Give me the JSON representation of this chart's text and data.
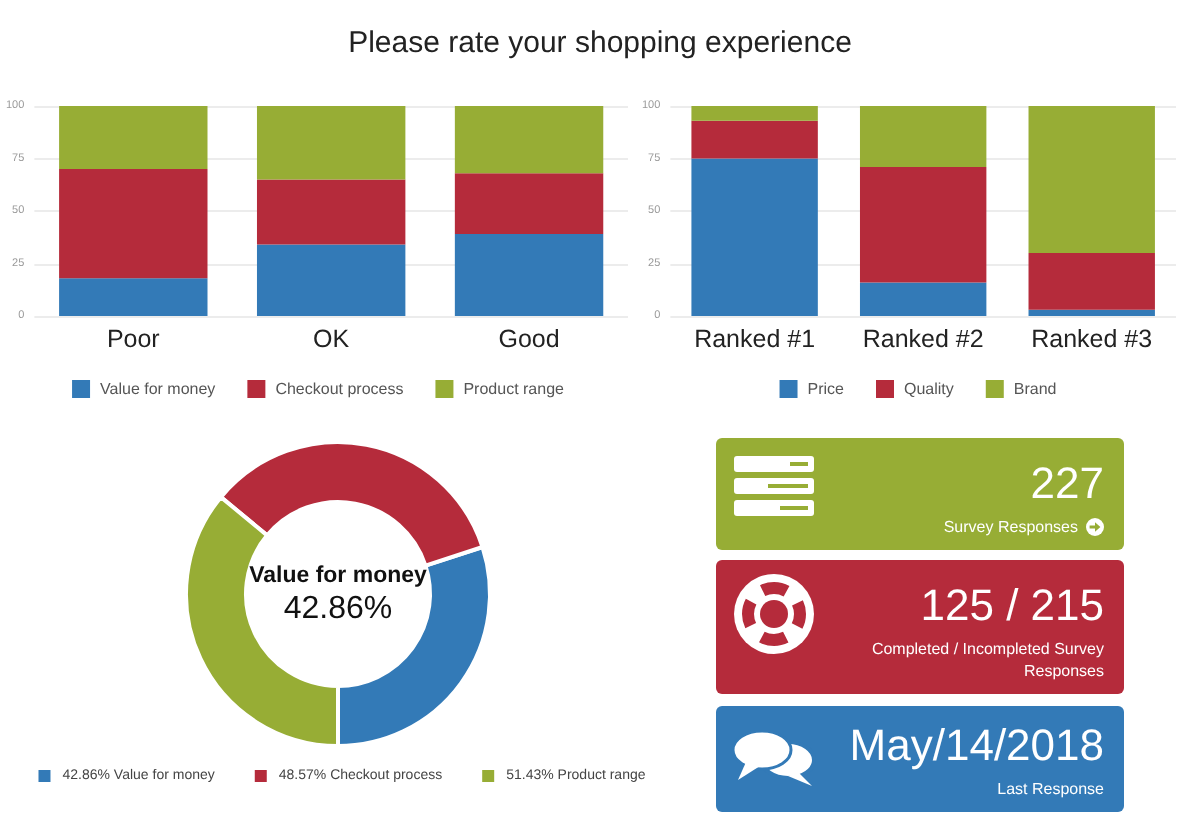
{
  "chart_data": [
    {
      "type": "bar",
      "title": "Please rate your shopping experience",
      "categories": [
        "Poor",
        "OK",
        "Good"
      ],
      "stacked": true,
      "series": [
        {
          "name": "Value for money",
          "color": "#337ab7",
          "values": [
            18,
            34,
            39
          ]
        },
        {
          "name": "Checkout process",
          "color": "#b52b3b",
          "values": [
            52,
            31,
            29
          ]
        },
        {
          "name": "Product range",
          "color": "#97ad35",
          "values": [
            30,
            35,
            32
          ]
        }
      ],
      "ylim": [
        0,
        100
      ],
      "yticks": [
        0,
        25,
        50,
        75,
        100
      ],
      "grid": "y",
      "legend": "bottom"
    },
    {
      "type": "bar",
      "categories": [
        "Ranked #1",
        "Ranked #2",
        "Ranked #3"
      ],
      "stacked": true,
      "series": [
        {
          "name": "Price",
          "color": "#337ab7",
          "values": [
            75,
            16,
            3
          ]
        },
        {
          "name": "Quality",
          "color": "#b52b3b",
          "values": [
            18,
            55,
            27
          ]
        },
        {
          "name": "Brand",
          "color": "#97ad35",
          "values": [
            7,
            29,
            70
          ]
        }
      ],
      "ylim": [
        0,
        100
      ],
      "yticks": [
        0,
        25,
        50,
        75,
        100
      ],
      "grid": "y",
      "legend": "bottom"
    },
    {
      "type": "donut",
      "categories": [
        "Value for money",
        "Checkout process",
        "Product range"
      ],
      "values": [
        42.86,
        48.57,
        51.43
      ],
      "colors": [
        "#337ab7",
        "#b52b3b",
        "#97ad35"
      ],
      "value_labels": [
        "42.86%",
        "48.57%",
        "51.43%"
      ],
      "legend": "bottom"
    },
    {
      "type": "other",
      "annotations": [
        "227",
        "Survey Responses",
        "125 / 215",
        "Completed / Incompleted Survey Responses",
        "May/14/2018",
        "Last Response"
      ],
      "colors": [
        "#97ad35",
        "#b52b3b",
        "#337ab7"
      ]
    }
  ]
}
